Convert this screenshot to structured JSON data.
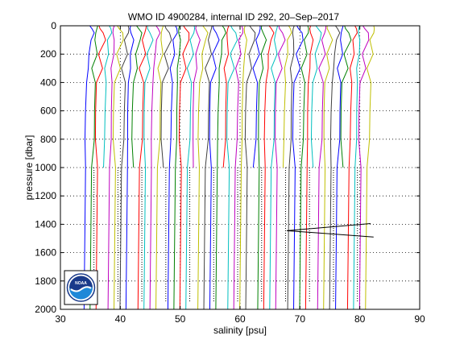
{
  "chart_data": {
    "type": "line",
    "title": "WMO ID 4900284, internal ID 292, 20–Sep–2017",
    "xlabel": "salinity [psu]",
    "ylabel": "pressure [dbar]",
    "xlim": [
      30,
      90
    ],
    "ylim": [
      0,
      2000
    ],
    "y_reversed": true,
    "x_ticks": [
      30,
      40,
      50,
      60,
      70,
      80,
      90
    ],
    "y_ticks": [
      0,
      200,
      400,
      600,
      800,
      1000,
      1200,
      1400,
      1600,
      1800,
      2000
    ],
    "grid": "dotted",
    "offset_plot": true,
    "profile_offset_psu": 1,
    "profile_count": 48,
    "first_profile_base_salinity": 34.3,
    "profile_colors": [
      "#0000ff",
      "#008000",
      "#ff0000",
      "#00bfbf",
      "#bf00bf",
      "#bfbf00",
      "#404040"
    ],
    "typical_profile": {
      "pressure": [
        0,
        20,
        50,
        100,
        200,
        300,
        400,
        600,
        800,
        1000,
        1200,
        1400,
        1600,
        1800,
        2000
      ],
      "salinity_anomaly": [
        0.6,
        0.7,
        0.9,
        0.8,
        0.5,
        0.3,
        0.15,
        0.0,
        -0.05,
        -0.1,
        -0.15,
        -0.2,
        -0.25,
        -0.3,
        -0.35
      ]
    },
    "anomalous_segment": {
      "points": [
        [
          67.8,
          1445
        ],
        [
          81.8,
          1395
        ],
        [
          67.8,
          1445
        ],
        [
          82.3,
          1490
        ]
      ]
    },
    "logo": "noaa-logo"
  }
}
